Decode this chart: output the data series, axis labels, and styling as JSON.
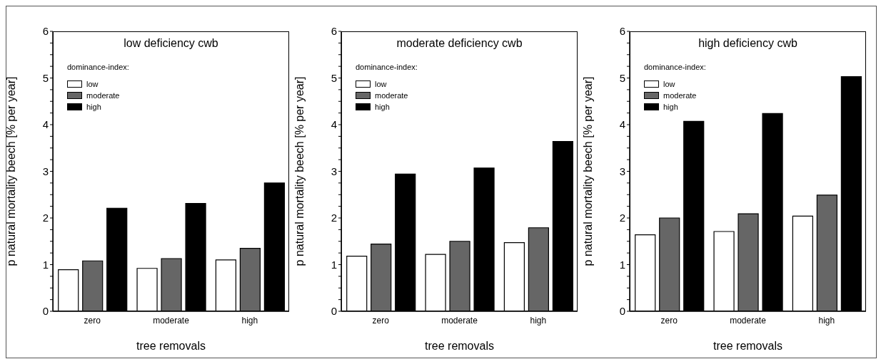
{
  "chart_data": [
    {
      "type": "bar",
      "title": "low deficiency cwb",
      "xlabel": "tree removals",
      "ylabel": "p natural mortality beech [% per year]",
      "categories": [
        "zero",
        "moderate",
        "high"
      ],
      "legend": "top left",
      "legend_title": "dominance-index:",
      "ylim": [
        0,
        6
      ],
      "yticks": [
        0,
        {
          "value": 0.25,
          "label": null
        },
        {
          "value": 0.5,
          "label": null
        },
        {
          "value": 0.75,
          "label": null
        },
        1,
        {
          "value": 1.25,
          "label": null
        },
        {
          "value": 1.5,
          "label": null
        },
        {
          "value": 1.75,
          "label": null
        },
        2,
        {
          "value": 2.25,
          "label": null
        },
        {
          "value": 2.5,
          "label": null
        },
        {
          "value": 2.75,
          "label": null
        },
        3,
        {
          "value": 3.25,
          "label": null
        },
        {
          "value": 3.5,
          "label": null
        },
        {
          "value": 3.75,
          "label": null
        },
        4,
        {
          "value": 4.25,
          "label": null
        },
        {
          "value": 4.5,
          "label": null
        },
        {
          "value": 4.75,
          "label": null
        },
        5,
        {
          "value": 5.25,
          "label": null
        },
        {
          "value": 5.5,
          "label": null
        },
        {
          "value": 5.75,
          "label": null
        },
        6
      ],
      "series": [
        {
          "name": "low",
          "color": "#ffffff",
          "values": [
            0.89,
            0.92,
            1.1
          ]
        },
        {
          "name": "moderate",
          "color": "#666666",
          "values": [
            1.08,
            1.13,
            1.35
          ]
        },
        {
          "name": "high",
          "color": "#000000",
          "values": [
            2.21,
            2.31,
            2.75
          ]
        }
      ]
    },
    {
      "type": "bar",
      "title": "moderate deficiency cwb",
      "xlabel": "tree removals",
      "ylabel": "p natural mortality beech [% per year]",
      "categories": [
        "zero",
        "moderate",
        "high"
      ],
      "legend": "top left",
      "legend_title": "dominance-index:",
      "ylim": [
        0,
        6
      ],
      "yticks": [
        0,
        {
          "value": 0.25,
          "label": null
        },
        {
          "value": 0.5,
          "label": null
        },
        {
          "value": 0.75,
          "label": null
        },
        1,
        {
          "value": 1.25,
          "label": null
        },
        {
          "value": 1.5,
          "label": null
        },
        {
          "value": 1.75,
          "label": null
        },
        2,
        {
          "value": 2.25,
          "label": null
        },
        {
          "value": 2.5,
          "label": null
        },
        {
          "value": 2.75,
          "label": null
        },
        3,
        {
          "value": 3.25,
          "label": null
        },
        {
          "value": 3.5,
          "label": null
        },
        {
          "value": 3.75,
          "label": null
        },
        4,
        {
          "value": 4.25,
          "label": null
        },
        {
          "value": 4.5,
          "label": null
        },
        {
          "value": 4.75,
          "label": null
        },
        5,
        {
          "value": 5.25,
          "label": null
        },
        {
          "value": 5.5,
          "label": null
        },
        {
          "value": 5.75,
          "label": null
        },
        6
      ],
      "series": [
        {
          "name": "low",
          "color": "#ffffff",
          "values": [
            1.18,
            1.22,
            1.47
          ]
        },
        {
          "name": "moderate",
          "color": "#666666",
          "values": [
            1.44,
            1.5,
            1.79
          ]
        },
        {
          "name": "high",
          "color": "#000000",
          "values": [
            2.94,
            3.07,
            3.64
          ]
        }
      ]
    },
    {
      "type": "bar",
      "title": "high deficiency cwb",
      "xlabel": "tree removals",
      "ylabel": "p natural mortality beech [% per year]",
      "categories": [
        "zero",
        "moderate",
        "high"
      ],
      "legend": "top left",
      "legend_title": "dominance-index:",
      "ylim": [
        0,
        6
      ],
      "yticks": [
        0,
        {
          "value": 0.25,
          "label": null
        },
        {
          "value": 0.5,
          "label": null
        },
        {
          "value": 0.75,
          "label": null
        },
        1,
        {
          "value": 1.25,
          "label": null
        },
        {
          "value": 1.5,
          "label": null
        },
        {
          "value": 1.75,
          "label": null
        },
        2,
        {
          "value": 2.25,
          "label": null
        },
        {
          "value": 2.5,
          "label": null
        },
        {
          "value": 2.75,
          "label": null
        },
        3,
        {
          "value": 3.25,
          "label": null
        },
        {
          "value": 3.5,
          "label": null
        },
        {
          "value": 3.75,
          "label": null
        },
        4,
        {
          "value": 4.25,
          "label": null
        },
        {
          "value": 4.5,
          "label": null
        },
        {
          "value": 4.75,
          "label": null
        },
        5,
        {
          "value": 5.25,
          "label": null
        },
        {
          "value": 5.5,
          "label": null
        },
        {
          "value": 5.75,
          "label": null
        },
        6
      ],
      "series": [
        {
          "name": "low",
          "color": "#ffffff",
          "values": [
            1.64,
            1.71,
            2.04
          ]
        },
        {
          "name": "moderate",
          "color": "#666666",
          "values": [
            2.0,
            2.09,
            2.49
          ]
        },
        {
          "name": "high",
          "color": "#000000",
          "values": [
            4.07,
            4.24,
            5.03
          ]
        }
      ]
    }
  ]
}
